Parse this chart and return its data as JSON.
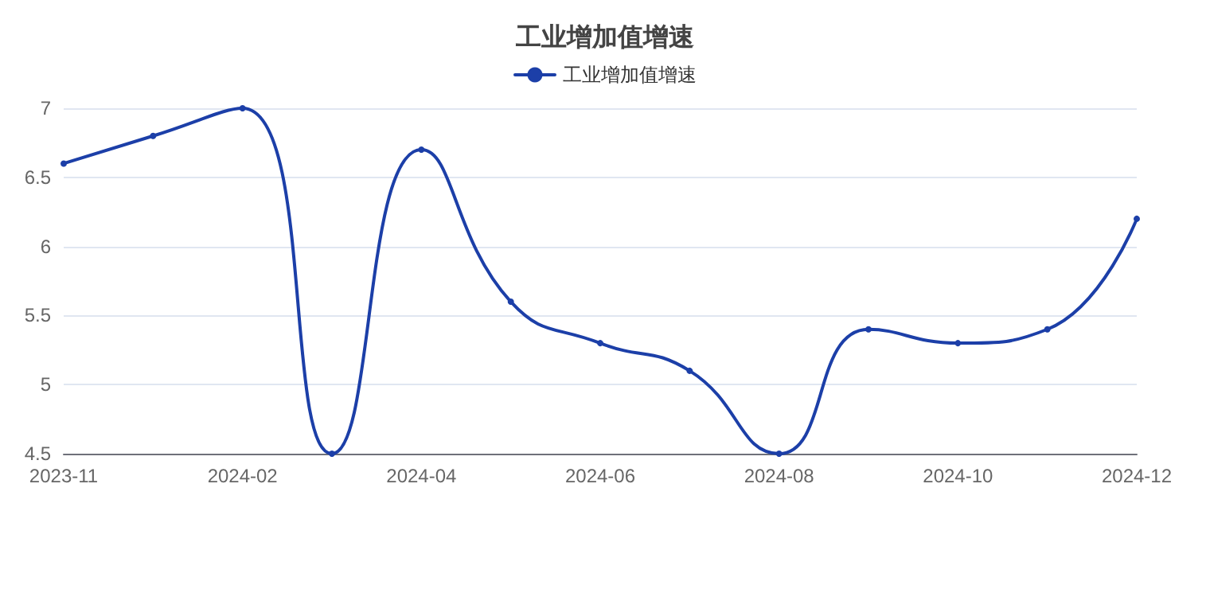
{
  "chart_data": {
    "type": "line",
    "title": "工业增加值增速",
    "categories": [
      "2023-11",
      null,
      "2024-02",
      null,
      "2024-04",
      null,
      "2024-06",
      null,
      "2024-08",
      null,
      "2024-10",
      null,
      "2024-12"
    ],
    "series": [
      {
        "name": "工业增加值增速",
        "color": "#1c3fa8",
        "values": [
          6.6,
          6.8,
          7.0,
          4.5,
          6.7,
          5.6,
          5.3,
          5.1,
          4.5,
          5.4,
          5.3,
          5.4,
          6.2
        ]
      }
    ],
    "ylim": [
      4.5,
      7
    ],
    "yticks": [
      4.5,
      5,
      5.5,
      6,
      6.5,
      7
    ],
    "grid": "y",
    "legend": "top",
    "marker": "circle",
    "line_style": "solid"
  }
}
